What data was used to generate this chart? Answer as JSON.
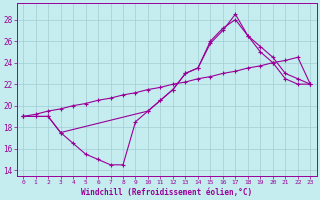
{
  "xlabel": "Windchill (Refroidissement éolien,°C)",
  "bg_color": "#c5ecee",
  "grid_color": "#a0cdd4",
  "line_color": "#990099",
  "xlim": [
    -0.5,
    23.5
  ],
  "ylim": [
    13.5,
    29.5
  ],
  "yticks": [
    14,
    16,
    18,
    20,
    22,
    24,
    26,
    28
  ],
  "xticks": [
    0,
    1,
    2,
    3,
    4,
    5,
    6,
    7,
    8,
    9,
    10,
    11,
    12,
    13,
    14,
    15,
    16,
    17,
    18,
    19,
    20,
    21,
    22,
    23
  ],
  "series": [
    {
      "x": [
        0,
        1,
        2,
        3,
        4,
        5,
        6,
        7,
        8,
        9,
        10,
        11,
        12,
        13,
        14,
        15,
        16,
        17,
        18,
        19,
        20,
        21,
        22,
        23
      ],
      "y": [
        19.0,
        19.0,
        19.0,
        17.5,
        16.5,
        15.5,
        15.0,
        14.5,
        14.5,
        18.5,
        19.5,
        20.5,
        21.5,
        23.0,
        23.5,
        25.8,
        27.0,
        28.5,
        26.5,
        25.0,
        24.0,
        22.5,
        22.0,
        22.0
      ]
    },
    {
      "x": [
        0,
        2,
        3,
        10,
        11,
        12,
        13,
        14,
        15,
        16,
        17,
        18,
        19,
        20,
        21,
        22,
        23
      ],
      "y": [
        19.0,
        19.0,
        17.5,
        19.5,
        20.5,
        21.5,
        23.0,
        23.5,
        26.0,
        27.2,
        28.0,
        26.5,
        25.5,
        24.5,
        23.0,
        22.5,
        22.0
      ]
    },
    {
      "x": [
        0,
        1,
        2,
        3,
        4,
        5,
        6,
        7,
        8,
        9,
        10,
        11,
        12,
        13,
        14,
        15,
        16,
        17,
        18,
        19,
        20,
        21,
        22,
        23
      ],
      "y": [
        19.0,
        19.2,
        19.5,
        19.7,
        20.0,
        20.2,
        20.5,
        20.7,
        21.0,
        21.2,
        21.5,
        21.7,
        22.0,
        22.2,
        22.5,
        22.7,
        23.0,
        23.2,
        23.5,
        23.7,
        24.0,
        24.2,
        24.5,
        22.0
      ]
    }
  ]
}
